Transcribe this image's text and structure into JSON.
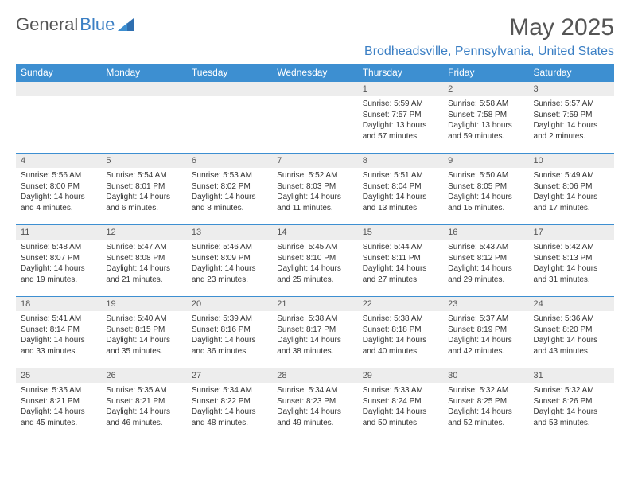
{
  "logo": {
    "text1": "General",
    "text2": "Blue"
  },
  "header": {
    "month_title": "May 2025",
    "location": "Brodheadsville, Pennsylvania, United States"
  },
  "colors": {
    "header_bg": "#3d8fd1",
    "header_text": "#ffffff",
    "daynum_bg": "#ededed",
    "border": "#3d8fd1",
    "accent": "#3b7fc4"
  },
  "weekdays": [
    "Sunday",
    "Monday",
    "Tuesday",
    "Wednesday",
    "Thursday",
    "Friday",
    "Saturday"
  ],
  "weeks": [
    [
      null,
      null,
      null,
      null,
      {
        "n": "1",
        "sr": "5:59 AM",
        "ss": "7:57 PM",
        "dl": "13 hours and 57 minutes."
      },
      {
        "n": "2",
        "sr": "5:58 AM",
        "ss": "7:58 PM",
        "dl": "13 hours and 59 minutes."
      },
      {
        "n": "3",
        "sr": "5:57 AM",
        "ss": "7:59 PM",
        "dl": "14 hours and 2 minutes."
      }
    ],
    [
      {
        "n": "4",
        "sr": "5:56 AM",
        "ss": "8:00 PM",
        "dl": "14 hours and 4 minutes."
      },
      {
        "n": "5",
        "sr": "5:54 AM",
        "ss": "8:01 PM",
        "dl": "14 hours and 6 minutes."
      },
      {
        "n": "6",
        "sr": "5:53 AM",
        "ss": "8:02 PM",
        "dl": "14 hours and 8 minutes."
      },
      {
        "n": "7",
        "sr": "5:52 AM",
        "ss": "8:03 PM",
        "dl": "14 hours and 11 minutes."
      },
      {
        "n": "8",
        "sr": "5:51 AM",
        "ss": "8:04 PM",
        "dl": "14 hours and 13 minutes."
      },
      {
        "n": "9",
        "sr": "5:50 AM",
        "ss": "8:05 PM",
        "dl": "14 hours and 15 minutes."
      },
      {
        "n": "10",
        "sr": "5:49 AM",
        "ss": "8:06 PM",
        "dl": "14 hours and 17 minutes."
      }
    ],
    [
      {
        "n": "11",
        "sr": "5:48 AM",
        "ss": "8:07 PM",
        "dl": "14 hours and 19 minutes."
      },
      {
        "n": "12",
        "sr": "5:47 AM",
        "ss": "8:08 PM",
        "dl": "14 hours and 21 minutes."
      },
      {
        "n": "13",
        "sr": "5:46 AM",
        "ss": "8:09 PM",
        "dl": "14 hours and 23 minutes."
      },
      {
        "n": "14",
        "sr": "5:45 AM",
        "ss": "8:10 PM",
        "dl": "14 hours and 25 minutes."
      },
      {
        "n": "15",
        "sr": "5:44 AM",
        "ss": "8:11 PM",
        "dl": "14 hours and 27 minutes."
      },
      {
        "n": "16",
        "sr": "5:43 AM",
        "ss": "8:12 PM",
        "dl": "14 hours and 29 minutes."
      },
      {
        "n": "17",
        "sr": "5:42 AM",
        "ss": "8:13 PM",
        "dl": "14 hours and 31 minutes."
      }
    ],
    [
      {
        "n": "18",
        "sr": "5:41 AM",
        "ss": "8:14 PM",
        "dl": "14 hours and 33 minutes."
      },
      {
        "n": "19",
        "sr": "5:40 AM",
        "ss": "8:15 PM",
        "dl": "14 hours and 35 minutes."
      },
      {
        "n": "20",
        "sr": "5:39 AM",
        "ss": "8:16 PM",
        "dl": "14 hours and 36 minutes."
      },
      {
        "n": "21",
        "sr": "5:38 AM",
        "ss": "8:17 PM",
        "dl": "14 hours and 38 minutes."
      },
      {
        "n": "22",
        "sr": "5:38 AM",
        "ss": "8:18 PM",
        "dl": "14 hours and 40 minutes."
      },
      {
        "n": "23",
        "sr": "5:37 AM",
        "ss": "8:19 PM",
        "dl": "14 hours and 42 minutes."
      },
      {
        "n": "24",
        "sr": "5:36 AM",
        "ss": "8:20 PM",
        "dl": "14 hours and 43 minutes."
      }
    ],
    [
      {
        "n": "25",
        "sr": "5:35 AM",
        "ss": "8:21 PM",
        "dl": "14 hours and 45 minutes."
      },
      {
        "n": "26",
        "sr": "5:35 AM",
        "ss": "8:21 PM",
        "dl": "14 hours and 46 minutes."
      },
      {
        "n": "27",
        "sr": "5:34 AM",
        "ss": "8:22 PM",
        "dl": "14 hours and 48 minutes."
      },
      {
        "n": "28",
        "sr": "5:34 AM",
        "ss": "8:23 PM",
        "dl": "14 hours and 49 minutes."
      },
      {
        "n": "29",
        "sr": "5:33 AM",
        "ss": "8:24 PM",
        "dl": "14 hours and 50 minutes."
      },
      {
        "n": "30",
        "sr": "5:32 AM",
        "ss": "8:25 PM",
        "dl": "14 hours and 52 minutes."
      },
      {
        "n": "31",
        "sr": "5:32 AM",
        "ss": "8:26 PM",
        "dl": "14 hours and 53 minutes."
      }
    ]
  ],
  "labels": {
    "sunrise": "Sunrise: ",
    "sunset": "Sunset: ",
    "daylight": "Daylight: "
  }
}
